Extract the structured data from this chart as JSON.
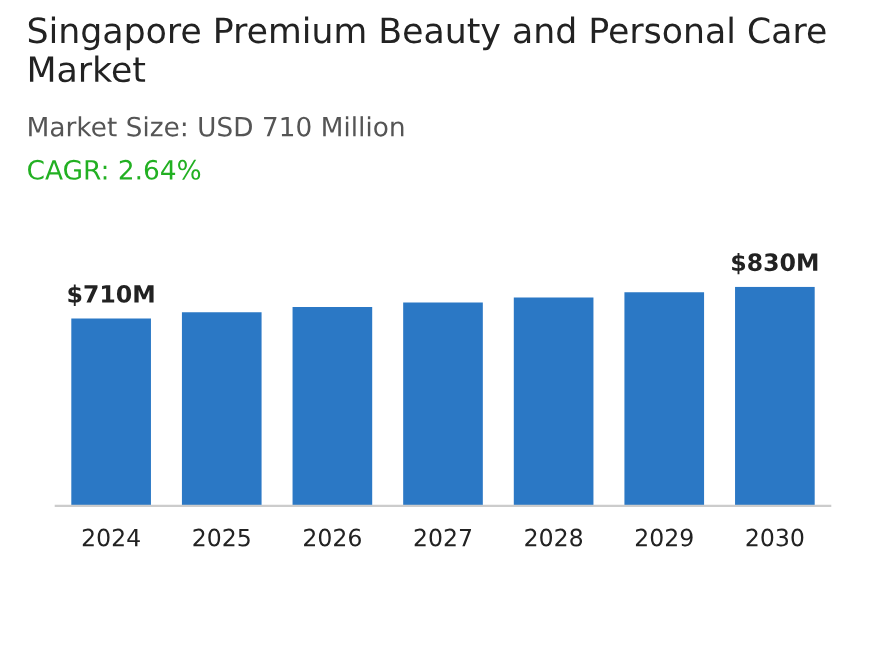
{
  "chart_data": {
    "type": "bar",
    "title": "Singapore Premium Beauty and Personal Care Market",
    "subtitle": "Market Size: USD 710 Million",
    "annotations": [
      "CAGR: 2.64%"
    ],
    "categories": [
      "2024",
      "2025",
      "2026",
      "2027",
      "2028",
      "2029",
      "2030"
    ],
    "values": [
      710,
      734,
      754,
      771,
      790,
      810,
      830
    ],
    "value_labels": [
      "$710M",
      null,
      null,
      null,
      null,
      null,
      "$830M"
    ],
    "color": "#2b78c5",
    "grid": false,
    "legend": false
  }
}
